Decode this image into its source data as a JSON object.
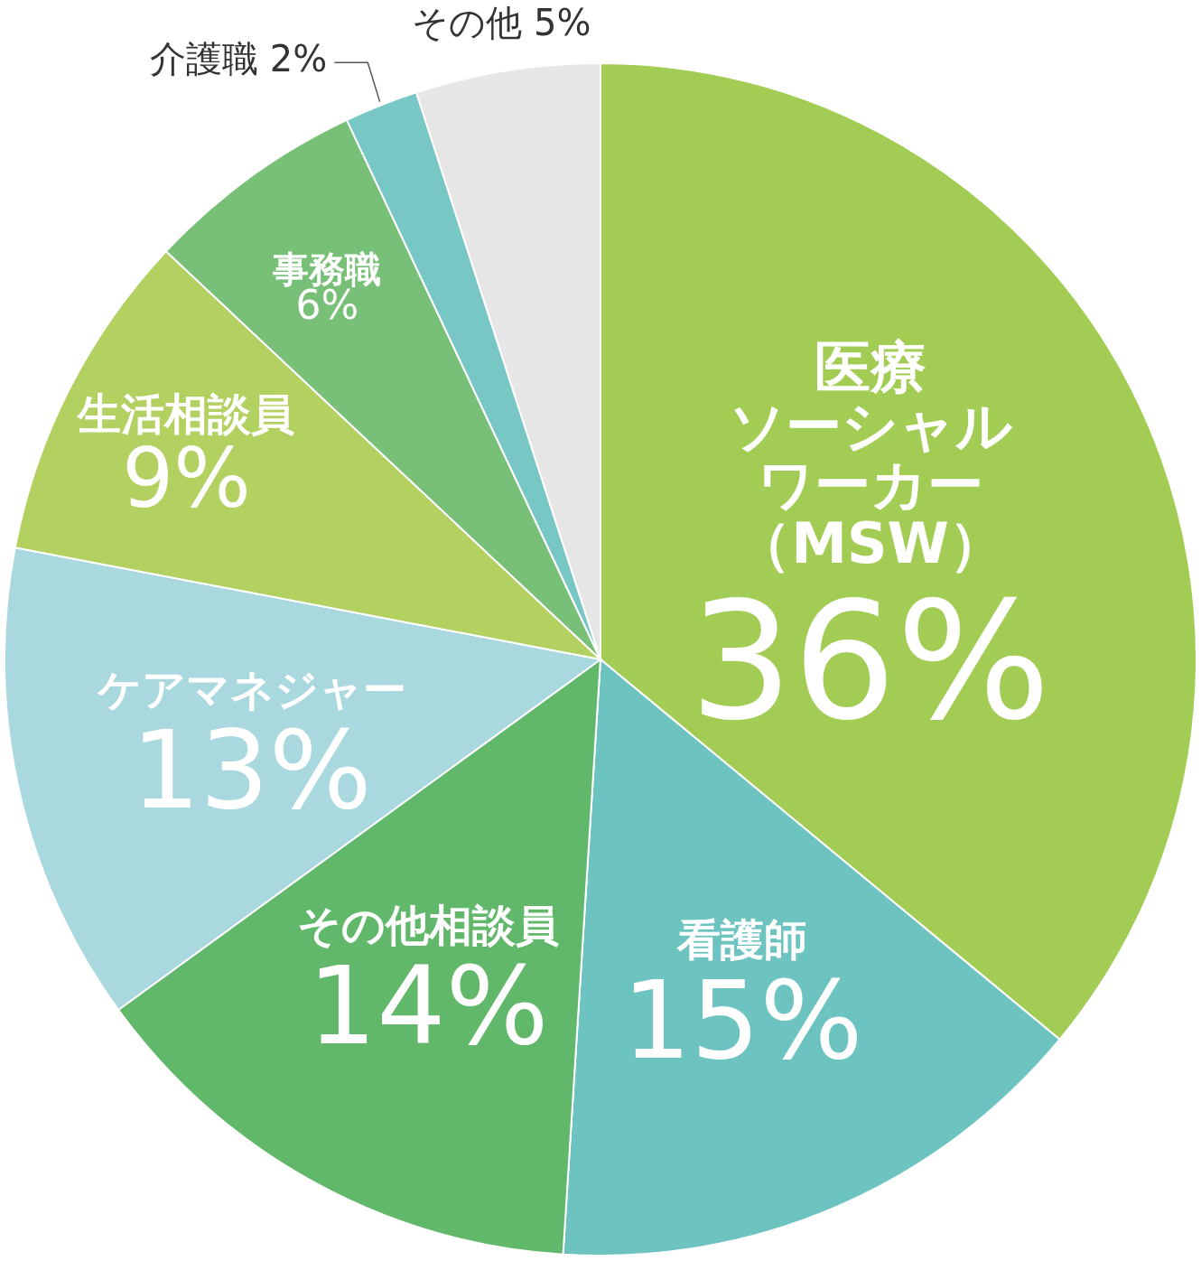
{
  "chart_data": {
    "type": "pie",
    "categories": [
      "医療ソーシャルワーカー（MSW）",
      "看護師",
      "その他相談員",
      "ケアマネジャー",
      "生活相談員",
      "事務職",
      "介護職",
      "その他"
    ],
    "values": [
      36,
      15,
      14,
      13,
      9,
      6,
      2,
      5
    ],
    "value_labels": [
      "36%",
      "15%",
      "14%",
      "13%",
      "9%",
      "6%",
      "2%",
      "5%"
    ],
    "colors": [
      "#a3cc55",
      "#6cc3c0",
      "#62b86a",
      "#a9d8df",
      "#b3d160",
      "#78bf78",
      "#79c7c5",
      "#e6e6e6"
    ],
    "legend": false
  }
}
